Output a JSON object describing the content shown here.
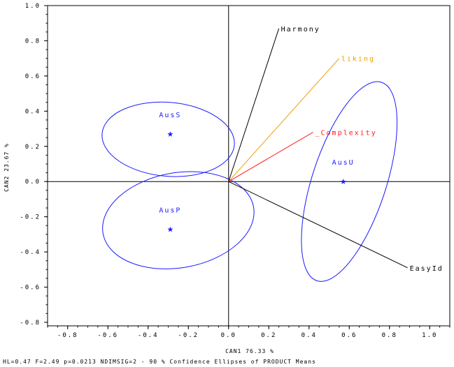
{
  "chart_data": {
    "type": "scatter",
    "title": "",
    "xlabel": "CAN1 76.33 %",
    "ylabel": "CAN2 23.67 %",
    "xlim": [
      -0.9,
      1.1
    ],
    "ylim": [
      -0.82,
      1.0
    ],
    "x_ticks": [
      -0.8,
      -0.6,
      -0.4,
      -0.2,
      0.0,
      0.2,
      0.4,
      0.6,
      0.8,
      1.0
    ],
    "y_ticks": [
      -0.8,
      -0.6,
      -0.4,
      -0.2,
      0.0,
      0.2,
      0.4,
      0.6,
      0.8,
      1.0
    ],
    "x_tick_labels": [
      "-0.8",
      "-0.6",
      "-0.4",
      "-0.2",
      "0.0",
      "0.2",
      "0.4",
      "0.6",
      "0.8",
      "1.0"
    ],
    "y_tick_labels": [
      "-0.8",
      "-0.6",
      "-0.4",
      "-0.2",
      "0.0",
      "0.2",
      "0.4",
      "0.6",
      "0.8",
      "1.0"
    ],
    "grid": false,
    "reference_lines": {
      "x": 0,
      "y": 0
    },
    "points": [
      {
        "label": "AusS",
        "x": -0.29,
        "y": 0.27,
        "color": "#1a1aff"
      },
      {
        "label": "AusP",
        "x": -0.29,
        "y": -0.27,
        "color": "#1a1aff"
      },
      {
        "label": "AusU",
        "x": 0.57,
        "y": 0.0,
        "color": "#1a1aff"
      }
    ],
    "confidence_ellipses": [
      {
        "group": "AusS",
        "cx": -0.3,
        "cy": 0.24,
        "rx": 0.33,
        "ry": 0.21,
        "rotation_deg": -5,
        "color": "#1a1aff"
      },
      {
        "group": "AusP",
        "cx": -0.25,
        "cy": -0.22,
        "rx": 0.38,
        "ry": 0.27,
        "rotation_deg": 10,
        "color": "#1a1aff"
      },
      {
        "group": "AusU",
        "cx": 0.6,
        "cy": 0.0,
        "rx": 0.52,
        "ry": 0.21,
        "rotation_deg": 72,
        "color": "#1a1aff"
      }
    ],
    "vectors": [
      {
        "label": "Harmony",
        "x": 0.25,
        "y": 0.87,
        "color": "#000000"
      },
      {
        "label": "liking",
        "x": 0.55,
        "y": 0.7,
        "color": "#f0a000"
      },
      {
        "label": "_Complexity",
        "x": 0.42,
        "y": 0.28,
        "color": "#ff1a1a"
      },
      {
        "label": "EasyId",
        "x": 0.89,
        "y": -0.49,
        "color": "#000000"
      }
    ],
    "footnote": "HL=0.47   F=2.49   p=0.0213  NDIMSIG=2  - 90 % Confidence Ellipses of PRODUCT Means"
  }
}
